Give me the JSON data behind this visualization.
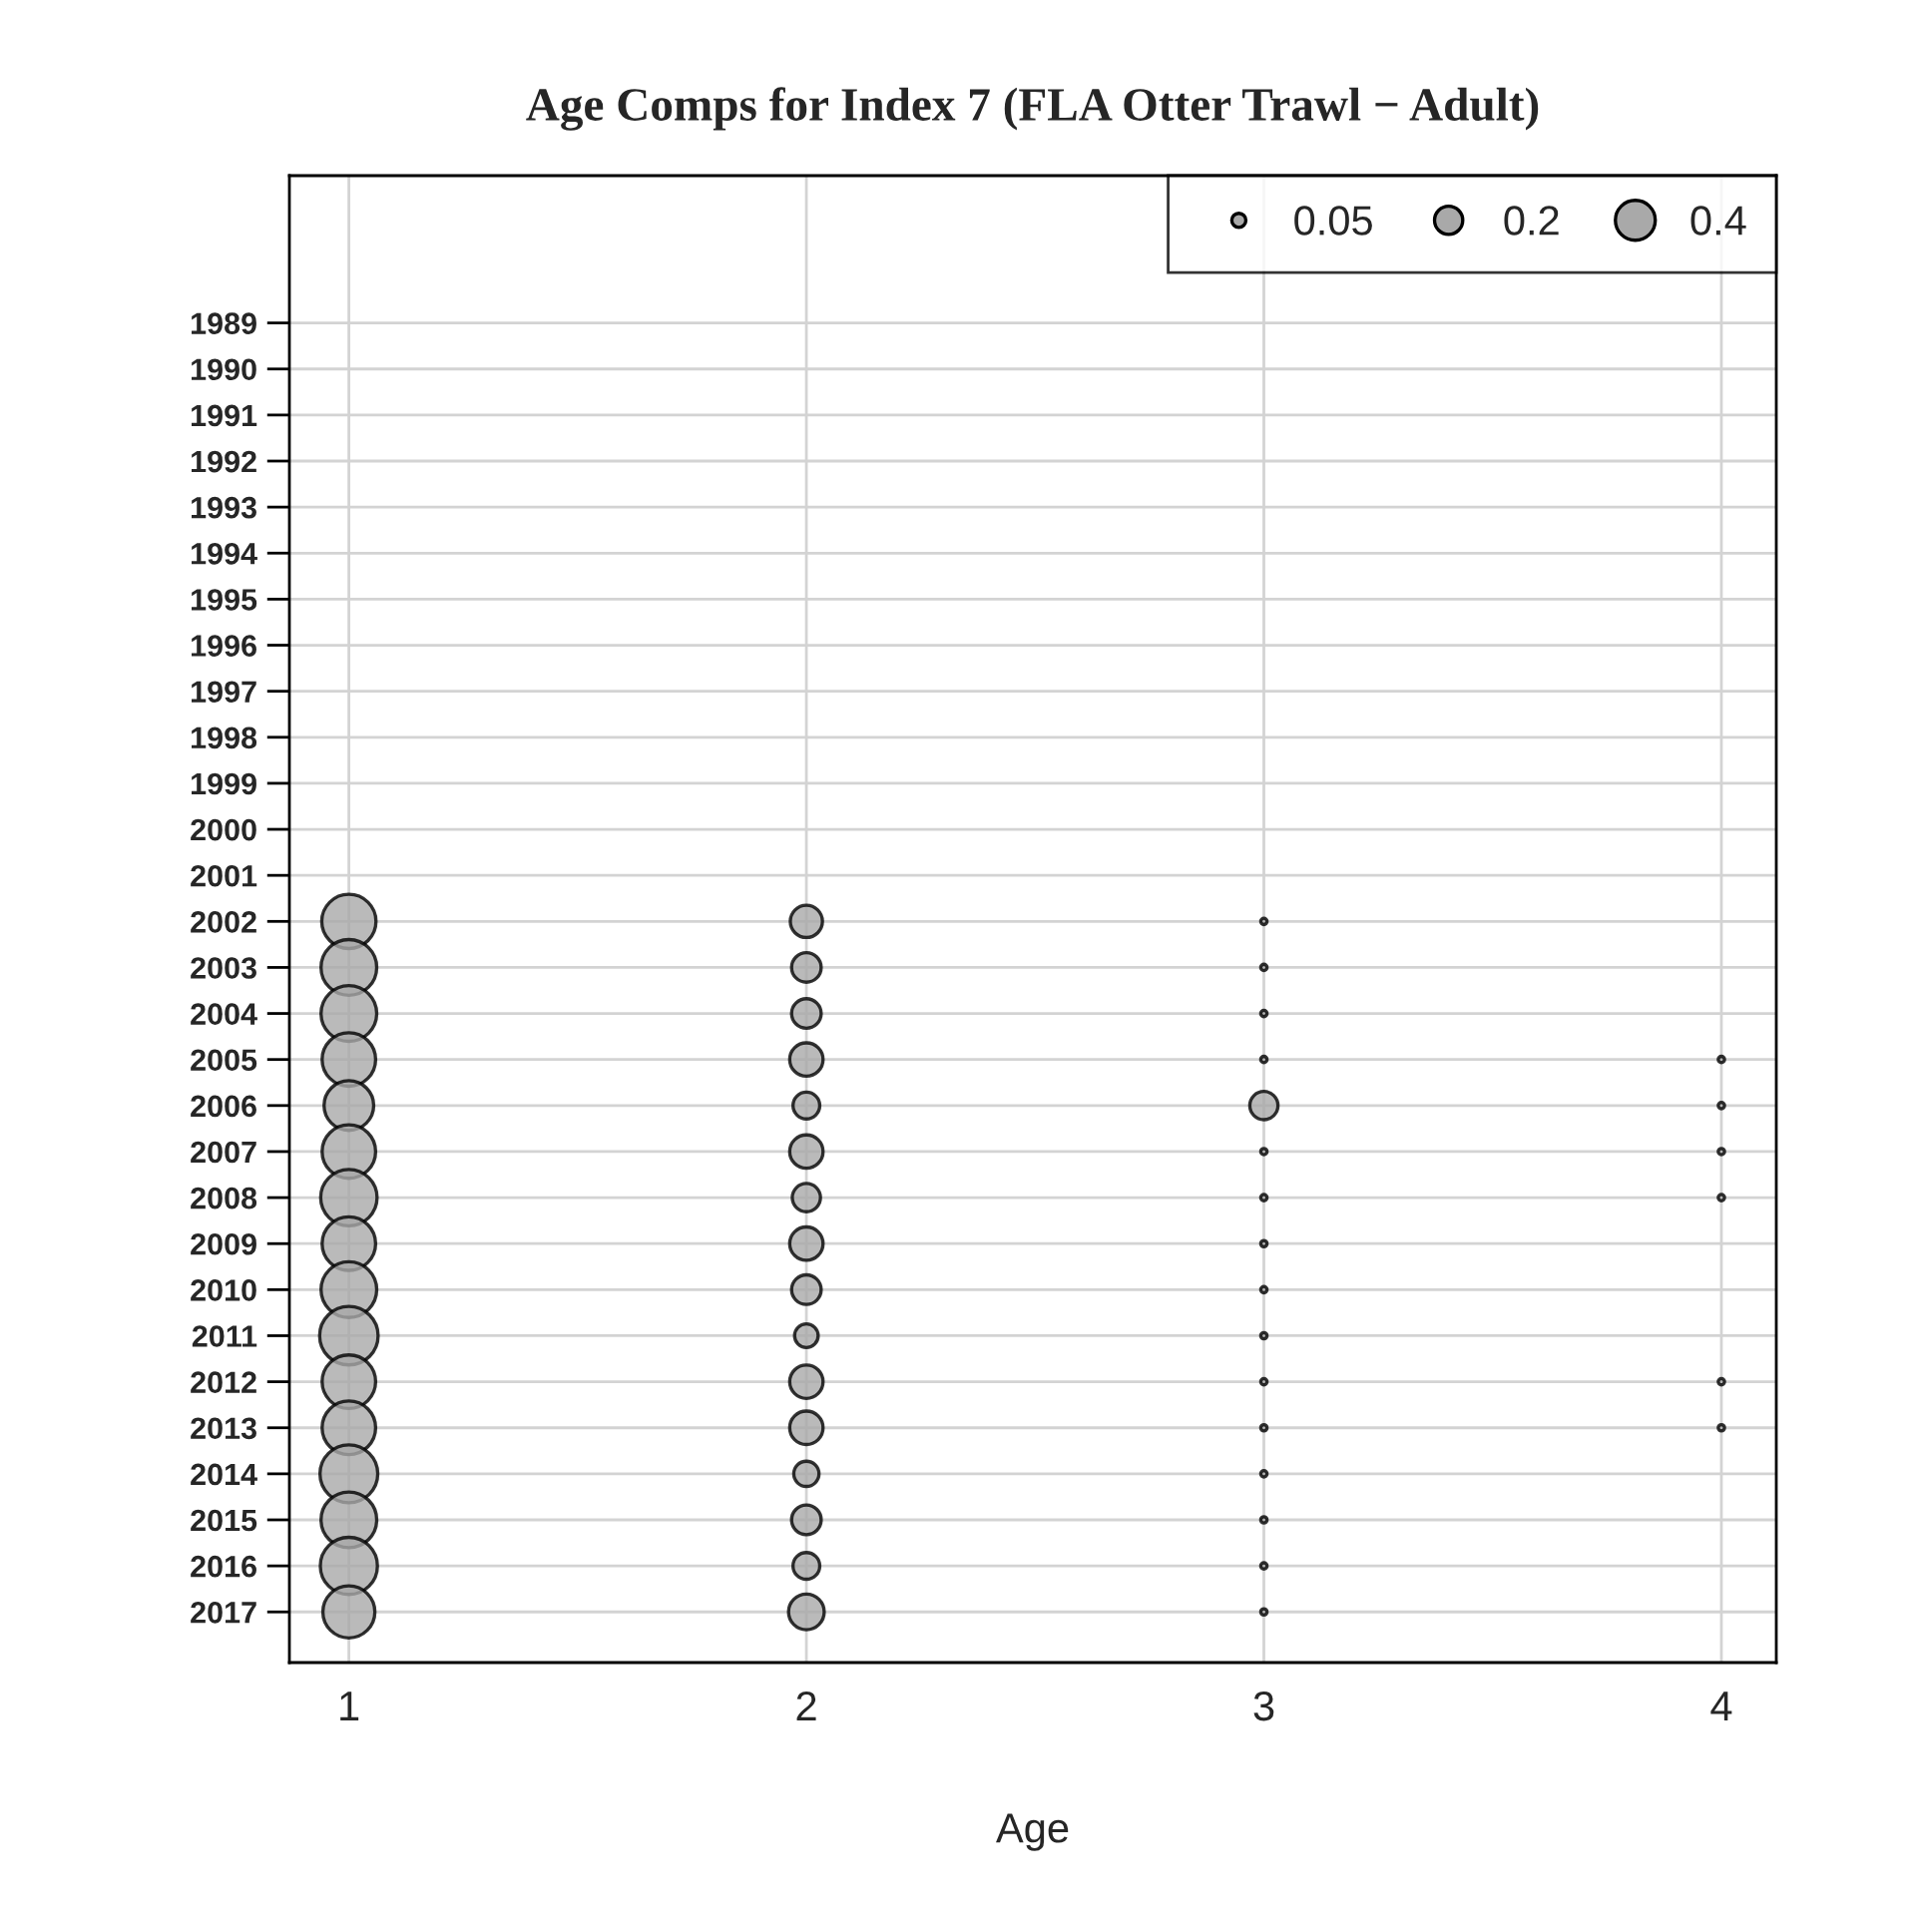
{
  "chart_data": {
    "type": "bubble",
    "title": "Age Comps for Index 7 (FLA Otter Trawl − Adult)",
    "xlabel": "Age",
    "xlim": [
      0.87,
      4.12
    ],
    "xticks": [
      1,
      2,
      3,
      4
    ],
    "ylim": [
      2018.1,
      1985.8
    ],
    "yticks": [
      1989,
      1990,
      1991,
      1992,
      1993,
      1994,
      1995,
      1996,
      1997,
      1998,
      1999,
      2000,
      2001,
      2002,
      2003,
      2004,
      2005,
      2006,
      2007,
      2008,
      2009,
      2010,
      2011,
      2012,
      2013,
      2014,
      2015,
      2016,
      2017
    ],
    "grid": true,
    "marker": "circle",
    "size_legend": [
      0.05,
      0.2,
      0.4
    ],
    "series": [
      {
        "color": "#a9a9a9",
        "x": [
          1,
          1,
          1,
          1,
          1,
          1,
          1,
          1,
          1,
          1,
          1,
          1,
          1,
          1,
          1,
          1,
          2,
          2,
          2,
          2,
          2,
          2,
          2,
          2,
          2,
          2,
          2,
          2,
          2,
          2,
          2,
          2,
          3,
          3,
          3,
          3,
          3,
          3,
          3,
          3,
          3,
          3,
          3,
          3,
          3,
          3,
          3,
          3,
          4,
          4,
          4,
          4,
          4,
          4
        ],
        "values": [
          2002,
          2003,
          2004,
          2005,
          2006,
          2007,
          2008,
          2009,
          2010,
          2011,
          2012,
          2013,
          2014,
          2015,
          2016,
          2017,
          2002,
          2003,
          2004,
          2005,
          2006,
          2007,
          2008,
          2009,
          2010,
          2011,
          2012,
          2013,
          2014,
          2015,
          2016,
          2017,
          2002,
          2003,
          2004,
          2005,
          2006,
          2007,
          2008,
          2009,
          2010,
          2011,
          2012,
          2013,
          2014,
          2015,
          2016,
          2017,
          2005,
          2006,
          2007,
          2008,
          2012,
          2013
        ],
        "sizes": [
          0.74,
          0.78,
          0.78,
          0.72,
          0.62,
          0.72,
          0.8,
          0.72,
          0.78,
          0.86,
          0.72,
          0.72,
          0.84,
          0.78,
          0.82,
          0.68,
          0.26,
          0.22,
          0.22,
          0.28,
          0.18,
          0.28,
          0.2,
          0.28,
          0.22,
          0.14,
          0.28,
          0.28,
          0.16,
          0.22,
          0.18,
          0.32,
          0.01,
          0.01,
          0.01,
          0.01,
          0.2,
          0.01,
          0.01,
          0.01,
          0.01,
          0.01,
          0.01,
          0.01,
          0.01,
          0.01,
          0.01,
          0.01,
          0.01,
          0.01,
          0.01,
          0.01,
          0.01,
          0.01
        ]
      }
    ]
  }
}
